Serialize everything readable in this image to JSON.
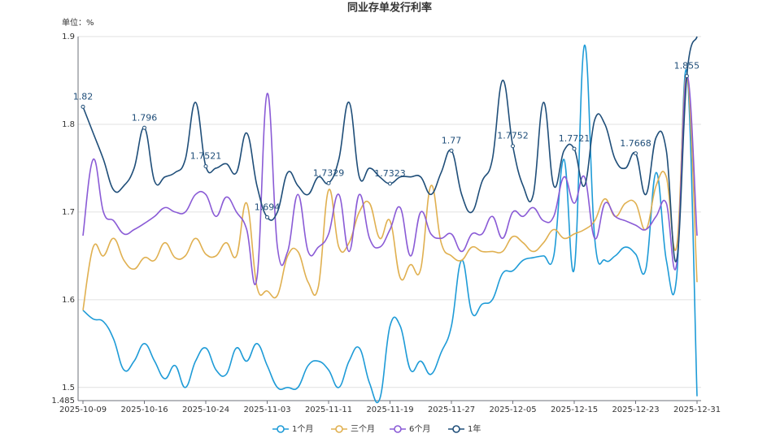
{
  "chart_data": {
    "type": "line",
    "title": "同业存单发行利率",
    "unit_label": "单位：%",
    "categories": [
      "2025-10-09",
      null,
      null,
      null,
      null,
      null,
      "2025-10-16",
      null,
      null,
      null,
      null,
      null,
      "2025-10-24",
      null,
      null,
      null,
      null,
      null,
      "2025-11-03",
      null,
      null,
      null,
      null,
      null,
      "2025-11-11",
      null,
      null,
      null,
      null,
      null,
      "2025-11-19",
      null,
      null,
      null,
      null,
      null,
      "2025-11-27",
      null,
      null,
      null,
      null,
      null,
      "2025-12-05",
      null,
      null,
      null,
      null,
      null,
      "2025-12-15",
      null,
      null,
      null,
      null,
      null,
      "2025-12-23",
      null,
      null,
      null,
      null,
      null,
      "2025-12-31"
    ],
    "series": [
      {
        "name": "1个月",
        "color": "#1e9bd7",
        "values": [
          1.588,
          1.578,
          1.575,
          1.555,
          1.52,
          1.53,
          1.55,
          1.53,
          1.51,
          1.525,
          1.5,
          1.53,
          1.545,
          1.52,
          1.515,
          1.545,
          1.53,
          1.55,
          1.525,
          1.5,
          1.5,
          1.5,
          1.525,
          1.53,
          1.52,
          1.5,
          1.53,
          1.545,
          1.505,
          1.487,
          1.57,
          1.57,
          1.52,
          1.53,
          1.515,
          1.54,
          1.57,
          1.645,
          1.585,
          1.595,
          1.6,
          1.63,
          1.633,
          1.645,
          1.648,
          1.65,
          1.65,
          1.76,
          1.635,
          1.89,
          1.67,
          1.645,
          1.65,
          1.66,
          1.652,
          1.635,
          1.745,
          1.645,
          1.625,
          1.86,
          1.49
        ]
      },
      {
        "name": "三个月",
        "color": "#e0b050",
        "values": [
          1.588,
          1.66,
          1.65,
          1.67,
          1.645,
          1.635,
          1.648,
          1.645,
          1.665,
          1.648,
          1.65,
          1.67,
          1.652,
          1.65,
          1.665,
          1.65,
          1.71,
          1.615,
          1.61,
          1.605,
          1.65,
          1.655,
          1.62,
          1.615,
          1.725,
          1.66,
          1.665,
          1.7,
          1.71,
          1.67,
          1.69,
          1.625,
          1.64,
          1.635,
          1.73,
          1.665,
          1.65,
          1.645,
          1.66,
          1.655,
          1.655,
          1.655,
          1.672,
          1.665,
          1.655,
          1.665,
          1.68,
          1.67,
          1.675,
          1.68,
          1.69,
          1.715,
          1.695,
          1.71,
          1.71,
          1.68,
          1.73,
          1.74,
          1.66,
          1.855,
          1.62
        ]
      },
      {
        "name": "6个月",
        "color": "#8a5bd6",
        "values": [
          1.673,
          1.76,
          1.7,
          1.69,
          1.675,
          1.68,
          1.687,
          1.695,
          1.705,
          1.7,
          1.7,
          1.72,
          1.72,
          1.695,
          1.717,
          1.7,
          1.68,
          1.625,
          1.835,
          1.66,
          1.655,
          1.72,
          1.655,
          1.66,
          1.675,
          1.72,
          1.655,
          1.72,
          1.67,
          1.66,
          1.68,
          1.705,
          1.65,
          1.7,
          1.675,
          1.67,
          1.675,
          1.655,
          1.675,
          1.675,
          1.695,
          1.67,
          1.7,
          1.695,
          1.705,
          1.69,
          1.695,
          1.74,
          1.71,
          1.74,
          1.67,
          1.71,
          1.695,
          1.69,
          1.685,
          1.68,
          1.695,
          1.71,
          1.64,
          1.855,
          1.673
        ]
      },
      {
        "name": "1年",
        "color": "#1f4e79",
        "values": [
          1.82,
          1.79,
          1.76,
          1.725,
          1.73,
          1.75,
          1.796,
          1.735,
          1.74,
          1.745,
          1.76,
          1.825,
          1.7521,
          1.75,
          1.755,
          1.745,
          1.79,
          1.73,
          1.694,
          1.7,
          1.745,
          1.73,
          1.72,
          1.74,
          1.7329,
          1.76,
          1.825,
          1.74,
          1.75,
          1.74,
          1.7323,
          1.74,
          1.74,
          1.74,
          1.72,
          1.745,
          1.77,
          1.72,
          1.7,
          1.735,
          1.76,
          1.85,
          1.7752,
          1.73,
          1.72,
          1.825,
          1.73,
          1.77,
          1.7721,
          1.73,
          1.805,
          1.8,
          1.76,
          1.75,
          1.7668,
          1.72,
          1.785,
          1.77,
          1.645,
          1.855,
          1.9
        ],
        "value_labels": [
          "1.82",
          null,
          null,
          null,
          null,
          null,
          "1.796",
          null,
          null,
          null,
          null,
          null,
          "1.7521",
          null,
          null,
          null,
          null,
          null,
          "1.694",
          null,
          null,
          null,
          null,
          null,
          "1.7329",
          null,
          null,
          null,
          null,
          null,
          "1.7323",
          null,
          null,
          null,
          null,
          null,
          "1.77",
          null,
          null,
          null,
          null,
          null,
          "1.7752",
          null,
          null,
          null,
          null,
          null,
          "1.7721",
          null,
          null,
          null,
          null,
          null,
          "1.7668",
          null,
          null,
          null,
          null,
          "1.855",
          null
        ]
      }
    ],
    "ylim": [
      1.485,
      1.9
    ],
    "yticks": [
      {
        "value": 1.485,
        "label": "1.485"
      },
      1.5,
      1.6,
      1.7,
      1.8,
      1.9
    ],
    "grid": true,
    "legend": "bottom"
  }
}
